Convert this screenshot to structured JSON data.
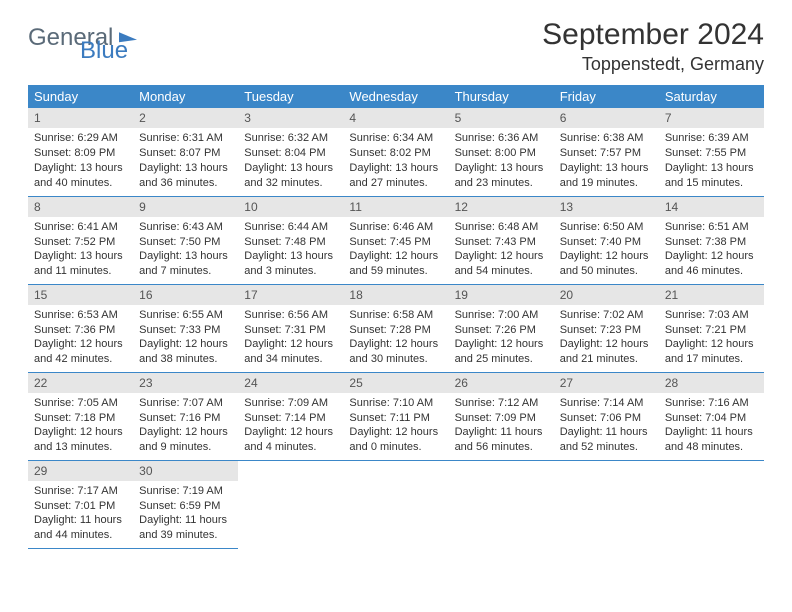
{
  "logo": {
    "text1": "General",
    "text2": "Blue"
  },
  "title": "September 2024",
  "location": "Toppenstedt, Germany",
  "colors": {
    "header_bg": "#3b87c8",
    "header_text": "#ffffff",
    "daynum_bg": "#e6e6e6",
    "border": "#3b87c8",
    "logo_gray": "#5a6a78",
    "logo_blue": "#3b7bbf"
  },
  "day_headers": [
    "Sunday",
    "Monday",
    "Tuesday",
    "Wednesday",
    "Thursday",
    "Friday",
    "Saturday"
  ],
  "weeks": [
    [
      {
        "n": "1",
        "sr": "6:29 AM",
        "ss": "8:09 PM",
        "dl": "13 hours and 40 minutes."
      },
      {
        "n": "2",
        "sr": "6:31 AM",
        "ss": "8:07 PM",
        "dl": "13 hours and 36 minutes."
      },
      {
        "n": "3",
        "sr": "6:32 AM",
        "ss": "8:04 PM",
        "dl": "13 hours and 32 minutes."
      },
      {
        "n": "4",
        "sr": "6:34 AM",
        "ss": "8:02 PM",
        "dl": "13 hours and 27 minutes."
      },
      {
        "n": "5",
        "sr": "6:36 AM",
        "ss": "8:00 PM",
        "dl": "13 hours and 23 minutes."
      },
      {
        "n": "6",
        "sr": "6:38 AM",
        "ss": "7:57 PM",
        "dl": "13 hours and 19 minutes."
      },
      {
        "n": "7",
        "sr": "6:39 AM",
        "ss": "7:55 PM",
        "dl": "13 hours and 15 minutes."
      }
    ],
    [
      {
        "n": "8",
        "sr": "6:41 AM",
        "ss": "7:52 PM",
        "dl": "13 hours and 11 minutes."
      },
      {
        "n": "9",
        "sr": "6:43 AM",
        "ss": "7:50 PM",
        "dl": "13 hours and 7 minutes."
      },
      {
        "n": "10",
        "sr": "6:44 AM",
        "ss": "7:48 PM",
        "dl": "13 hours and 3 minutes."
      },
      {
        "n": "11",
        "sr": "6:46 AM",
        "ss": "7:45 PM",
        "dl": "12 hours and 59 minutes."
      },
      {
        "n": "12",
        "sr": "6:48 AM",
        "ss": "7:43 PM",
        "dl": "12 hours and 54 minutes."
      },
      {
        "n": "13",
        "sr": "6:50 AM",
        "ss": "7:40 PM",
        "dl": "12 hours and 50 minutes."
      },
      {
        "n": "14",
        "sr": "6:51 AM",
        "ss": "7:38 PM",
        "dl": "12 hours and 46 minutes."
      }
    ],
    [
      {
        "n": "15",
        "sr": "6:53 AM",
        "ss": "7:36 PM",
        "dl": "12 hours and 42 minutes."
      },
      {
        "n": "16",
        "sr": "6:55 AM",
        "ss": "7:33 PM",
        "dl": "12 hours and 38 minutes."
      },
      {
        "n": "17",
        "sr": "6:56 AM",
        "ss": "7:31 PM",
        "dl": "12 hours and 34 minutes."
      },
      {
        "n": "18",
        "sr": "6:58 AM",
        "ss": "7:28 PM",
        "dl": "12 hours and 30 minutes."
      },
      {
        "n": "19",
        "sr": "7:00 AM",
        "ss": "7:26 PM",
        "dl": "12 hours and 25 minutes."
      },
      {
        "n": "20",
        "sr": "7:02 AM",
        "ss": "7:23 PM",
        "dl": "12 hours and 21 minutes."
      },
      {
        "n": "21",
        "sr": "7:03 AM",
        "ss": "7:21 PM",
        "dl": "12 hours and 17 minutes."
      }
    ],
    [
      {
        "n": "22",
        "sr": "7:05 AM",
        "ss": "7:18 PM",
        "dl": "12 hours and 13 minutes."
      },
      {
        "n": "23",
        "sr": "7:07 AM",
        "ss": "7:16 PM",
        "dl": "12 hours and 9 minutes."
      },
      {
        "n": "24",
        "sr": "7:09 AM",
        "ss": "7:14 PM",
        "dl": "12 hours and 4 minutes."
      },
      {
        "n": "25",
        "sr": "7:10 AM",
        "ss": "7:11 PM",
        "dl": "12 hours and 0 minutes."
      },
      {
        "n": "26",
        "sr": "7:12 AM",
        "ss": "7:09 PM",
        "dl": "11 hours and 56 minutes."
      },
      {
        "n": "27",
        "sr": "7:14 AM",
        "ss": "7:06 PM",
        "dl": "11 hours and 52 minutes."
      },
      {
        "n": "28",
        "sr": "7:16 AM",
        "ss": "7:04 PM",
        "dl": "11 hours and 48 minutes."
      }
    ],
    [
      {
        "n": "29",
        "sr": "7:17 AM",
        "ss": "7:01 PM",
        "dl": "11 hours and 44 minutes."
      },
      {
        "n": "30",
        "sr": "7:19 AM",
        "ss": "6:59 PM",
        "dl": "11 hours and 39 minutes."
      },
      null,
      null,
      null,
      null,
      null
    ]
  ],
  "labels": {
    "sunrise": "Sunrise:",
    "sunset": "Sunset:",
    "daylight": "Daylight:"
  }
}
